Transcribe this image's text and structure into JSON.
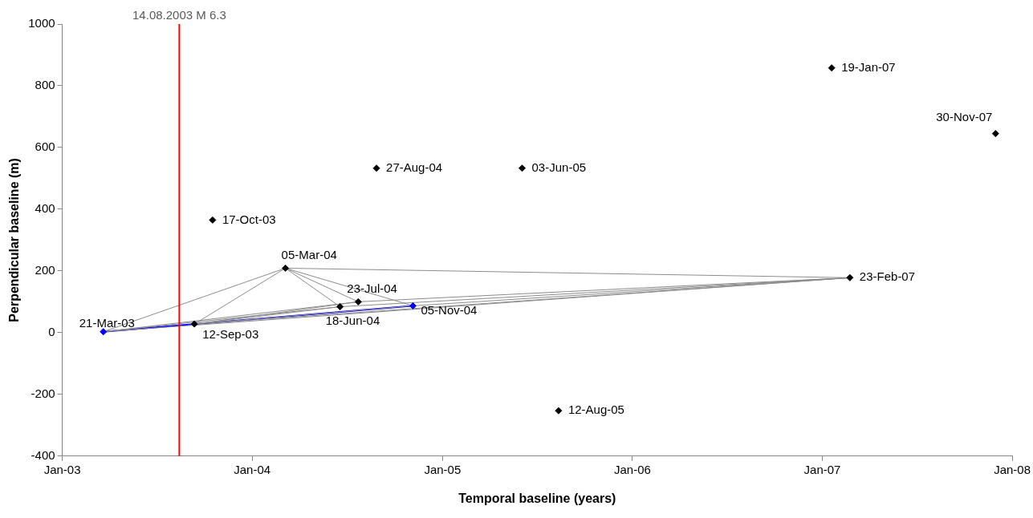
{
  "chart_data": {
    "type": "scatter",
    "xlabel": "Temporal baseline (years)",
    "ylabel": "Perpendicular baseline (m)",
    "xlim": [
      "2003-01-01",
      "2008-01-01"
    ],
    "xticks": [
      {
        "value": "2003-01-01",
        "label": "Jan-03"
      },
      {
        "value": "2004-01-01",
        "label": "Jan-04"
      },
      {
        "value": "2005-01-01",
        "label": "Jan-05"
      },
      {
        "value": "2006-01-01",
        "label": "Jan-06"
      },
      {
        "value": "2007-01-01",
        "label": "Jan-07"
      },
      {
        "value": "2008-01-01",
        "label": "Jan-08"
      }
    ],
    "ylim": [
      -400,
      1000
    ],
    "yticks": [
      -400,
      -200,
      0,
      200,
      400,
      600,
      800,
      1000
    ],
    "grid": false,
    "legend": false,
    "series": [
      {
        "type": "line",
        "color": "#8c8c8c",
        "x": [
          "2003-03-21",
          "2004-03-05"
        ],
        "values": [
          3,
          209
        ]
      },
      {
        "type": "line",
        "color": "#8c8c8c",
        "x": [
          "2003-09-12",
          "2004-03-05"
        ],
        "values": [
          28,
          209
        ]
      },
      {
        "type": "line",
        "color": "#8c8c8c",
        "x": [
          "2004-03-05",
          "2004-06-18"
        ],
        "values": [
          209,
          84
        ]
      },
      {
        "type": "line",
        "color": "#8c8c8c",
        "x": [
          "2004-03-05",
          "2004-07-23"
        ],
        "values": [
          209,
          100
        ]
      },
      {
        "type": "line",
        "color": "#8c8c8c",
        "x": [
          "2004-03-05",
          "2004-11-05"
        ],
        "values": [
          209,
          87
        ]
      },
      {
        "type": "line",
        "color": "#8c8c8c",
        "x": [
          "2004-03-05",
          "2007-02-23"
        ],
        "values": [
          209,
          178
        ]
      },
      {
        "type": "line",
        "color": "#8c8c8c",
        "x": [
          "2003-03-21",
          "2004-06-18"
        ],
        "values": [
          3,
          84
        ]
      },
      {
        "type": "line",
        "color": "#8c8c8c",
        "x": [
          "2003-03-21",
          "2004-07-23"
        ],
        "values": [
          3,
          100
        ]
      },
      {
        "type": "line",
        "color": "#8c8c8c",
        "x": [
          "2003-03-21",
          "2007-02-23"
        ],
        "values": [
          3,
          178
        ]
      },
      {
        "type": "line",
        "color": "#8c8c8c",
        "x": [
          "2003-09-12",
          "2004-06-18"
        ],
        "values": [
          28,
          84
        ]
      },
      {
        "type": "line",
        "color": "#8c8c8c",
        "x": [
          "2003-09-12",
          "2004-07-23"
        ],
        "values": [
          28,
          100
        ]
      },
      {
        "type": "line",
        "color": "#8c8c8c",
        "x": [
          "2003-09-12",
          "2004-11-05"
        ],
        "values": [
          28,
          87
        ]
      },
      {
        "type": "line",
        "color": "#8c8c8c",
        "x": [
          "2003-09-12",
          "2007-02-23"
        ],
        "values": [
          28,
          178
        ]
      },
      {
        "type": "line",
        "color": "#8c8c8c",
        "x": [
          "2004-06-18",
          "2007-02-23"
        ],
        "values": [
          84,
          178
        ]
      },
      {
        "type": "line",
        "color": "#8c8c8c",
        "x": [
          "2004-07-23",
          "2007-02-23"
        ],
        "values": [
          100,
          178
        ]
      },
      {
        "type": "line",
        "color": "#8c8c8c",
        "x": [
          "2004-11-05",
          "2007-02-23"
        ],
        "values": [
          87,
          178
        ]
      },
      {
        "type": "line",
        "color": "#0000ff",
        "x": [
          "2003-03-21",
          "2004-11-05"
        ],
        "values": [
          3,
          87
        ]
      },
      {
        "marker": "diamond",
        "x": [
          "2003-03-21",
          "2003-09-12",
          "2003-10-17",
          "2004-03-05",
          "2004-06-18",
          "2004-07-23",
          "2004-08-27",
          "2004-11-05",
          "2005-06-03",
          "2005-08-12",
          "2007-01-19",
          "2007-02-23",
          "2007-11-30"
        ],
        "values": [
          3,
          28,
          365,
          209,
          84,
          100,
          533,
          87,
          533,
          -253,
          858,
          178,
          645
        ],
        "colors": [
          "#0000ff",
          "#000000",
          "#000000",
          "#000000",
          "#000000",
          "#000000",
          "#000000",
          "#0000ff",
          "#000000",
          "#000000",
          "#000000",
          "#000000",
          "#000000"
        ]
      }
    ],
    "ref_lines": [
      {
        "axis": "x",
        "value": "2003-08-14",
        "label": "14.08.2003 M 6.3",
        "color": "#ff0000"
      }
    ],
    "annotations": [
      {
        "text": "21-Mar-03",
        "x": "2003-03-21",
        "y": 3
      },
      {
        "text": "12-Sep-03",
        "x": "2003-09-12",
        "y": 28
      },
      {
        "text": "17-Oct-03",
        "x": "2003-10-17",
        "y": 365
      },
      {
        "text": "05-Mar-04",
        "x": "2004-03-05",
        "y": 209
      },
      {
        "text": "18-Jun-04",
        "x": "2004-06-18",
        "y": 84
      },
      {
        "text": "23-Jul-04",
        "x": "2004-07-23",
        "y": 100
      },
      {
        "text": "27-Aug-04",
        "x": "2004-08-27",
        "y": 533
      },
      {
        "text": "05-Nov-04",
        "x": "2004-11-05",
        "y": 87
      },
      {
        "text": "03-Jun-05",
        "x": "2005-06-03",
        "y": 533
      },
      {
        "text": "12-Aug-05",
        "x": "2005-08-12",
        "y": -253
      },
      {
        "text": "19-Jan-07",
        "x": "2007-01-19",
        "y": 858
      },
      {
        "text": "23-Feb-07",
        "x": "2007-02-23",
        "y": 178
      },
      {
        "text": "30-Nov-07",
        "x": "2007-11-30",
        "y": 645
      }
    ]
  }
}
